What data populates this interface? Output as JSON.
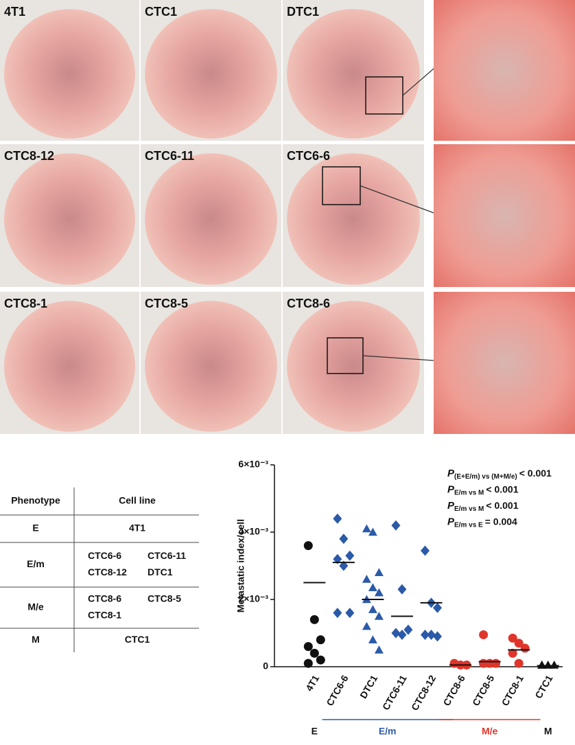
{
  "photos": [
    "4T1",
    "CTC1",
    "DTC1",
    "CTC8-12",
    "CTC6-11",
    "CTC6-6",
    "CTC8-1",
    "CTC8-5",
    "CTC8-6"
  ],
  "table": {
    "header": [
      "Phenotype",
      "Cell line"
    ],
    "rows": [
      {
        "phenotype": "E",
        "lines": [
          "4T1"
        ]
      },
      {
        "phenotype": "E/m",
        "lines": [
          "CTC6-6",
          "CTC6-11",
          "CTC8-12",
          "DTC1"
        ]
      },
      {
        "phenotype": "M/e",
        "lines": [
          "CTC8-6",
          "CTC8-5",
          "CTC8-1"
        ]
      },
      {
        "phenotype": "M",
        "lines": [
          "CTC1"
        ]
      }
    ]
  },
  "chart_data": {
    "type": "dotplot",
    "y_label": "Metastatic index/cell",
    "categories": [
      "4T1",
      "CTC6-6",
      "DTC1",
      "CTC6-11",
      "CTC8-12",
      "CTC8-6",
      "CTC8-5",
      "CTC8-1",
      "CTC1"
    ],
    "markers": [
      "circle",
      "diamond",
      "triangle",
      "diamond",
      "diamond",
      "circle",
      "circle",
      "circle",
      "triangle"
    ],
    "colors": [
      "#111111",
      "#2b5aa8",
      "#2b5aa8",
      "#2b5aa8",
      "#2b5aa8",
      "#e0352b",
      "#e0352b",
      "#e0352b",
      "#111111"
    ],
    "points": [
      [
        0.0036,
        0.0014,
        0.0008,
        0.0006,
        0.0004,
        0.0002,
        0.0001
      ],
      [
        0.0044,
        0.0038,
        0.0033,
        0.0032,
        0.003,
        0.0016,
        0.0016
      ],
      [
        0.0041,
        0.004,
        0.0028,
        0.0026,
        0.00235,
        0.0022,
        0.002,
        0.0017,
        0.0015,
        0.0012,
        0.0008,
        0.0005
      ],
      [
        0.0042,
        0.0023,
        0.0011,
        0.001,
        0.00095
      ],
      [
        0.00345,
        0.0019,
        0.00175,
        0.00095,
        0.00095,
        0.0009
      ],
      [
        0.0001,
        5e-05,
        5e-05
      ],
      [
        0.00095,
        0.0001,
        0.0001,
        0.0001
      ],
      [
        0.00085,
        0.0007,
        0.00055,
        0.0004,
        0.0001
      ],
      [
        5e-05,
        5e-05,
        5e-05,
        5e-05
      ]
    ],
    "means": [
      0.0025,
      0.0031,
      0.002,
      0.0015,
      0.0019,
      5e-05,
      0.00015,
      0.0005,
      3e-05
    ],
    "ylim": [
      0,
      0.006
    ],
    "yticks": [
      {
        "value": 0,
        "label": "0"
      },
      {
        "value": 0.002,
        "label": "2×10⁻³"
      },
      {
        "value": 0.004,
        "label": "4×10⁻³"
      },
      {
        "value": 0.006,
        "label": "6×10⁻³"
      }
    ],
    "groups": [
      {
        "label": "E",
        "count": 1,
        "color": "#111111",
        "underline": false
      },
      {
        "label": "E/m",
        "count": 4,
        "color": "#2b5aa8",
        "underline": true
      },
      {
        "label": "M/e",
        "count": 3,
        "color": "#e0352b",
        "underline": true
      },
      {
        "label": "M",
        "count": 1,
        "color": "#111111",
        "underline": false
      }
    ],
    "annotations": [
      {
        "symbol": "P",
        "sub": "(E+E/m) vs (M+M/e)",
        "text": "< 0.001"
      },
      {
        "symbol": "P",
        "sub": "E/m vs M",
        "text": "< 0.001"
      },
      {
        "symbol": "P",
        "sub": "E/m vs M",
        "text": "< 0.001"
      },
      {
        "symbol": "P",
        "sub": "E/m vs E",
        "text": "= 0.004"
      }
    ]
  }
}
